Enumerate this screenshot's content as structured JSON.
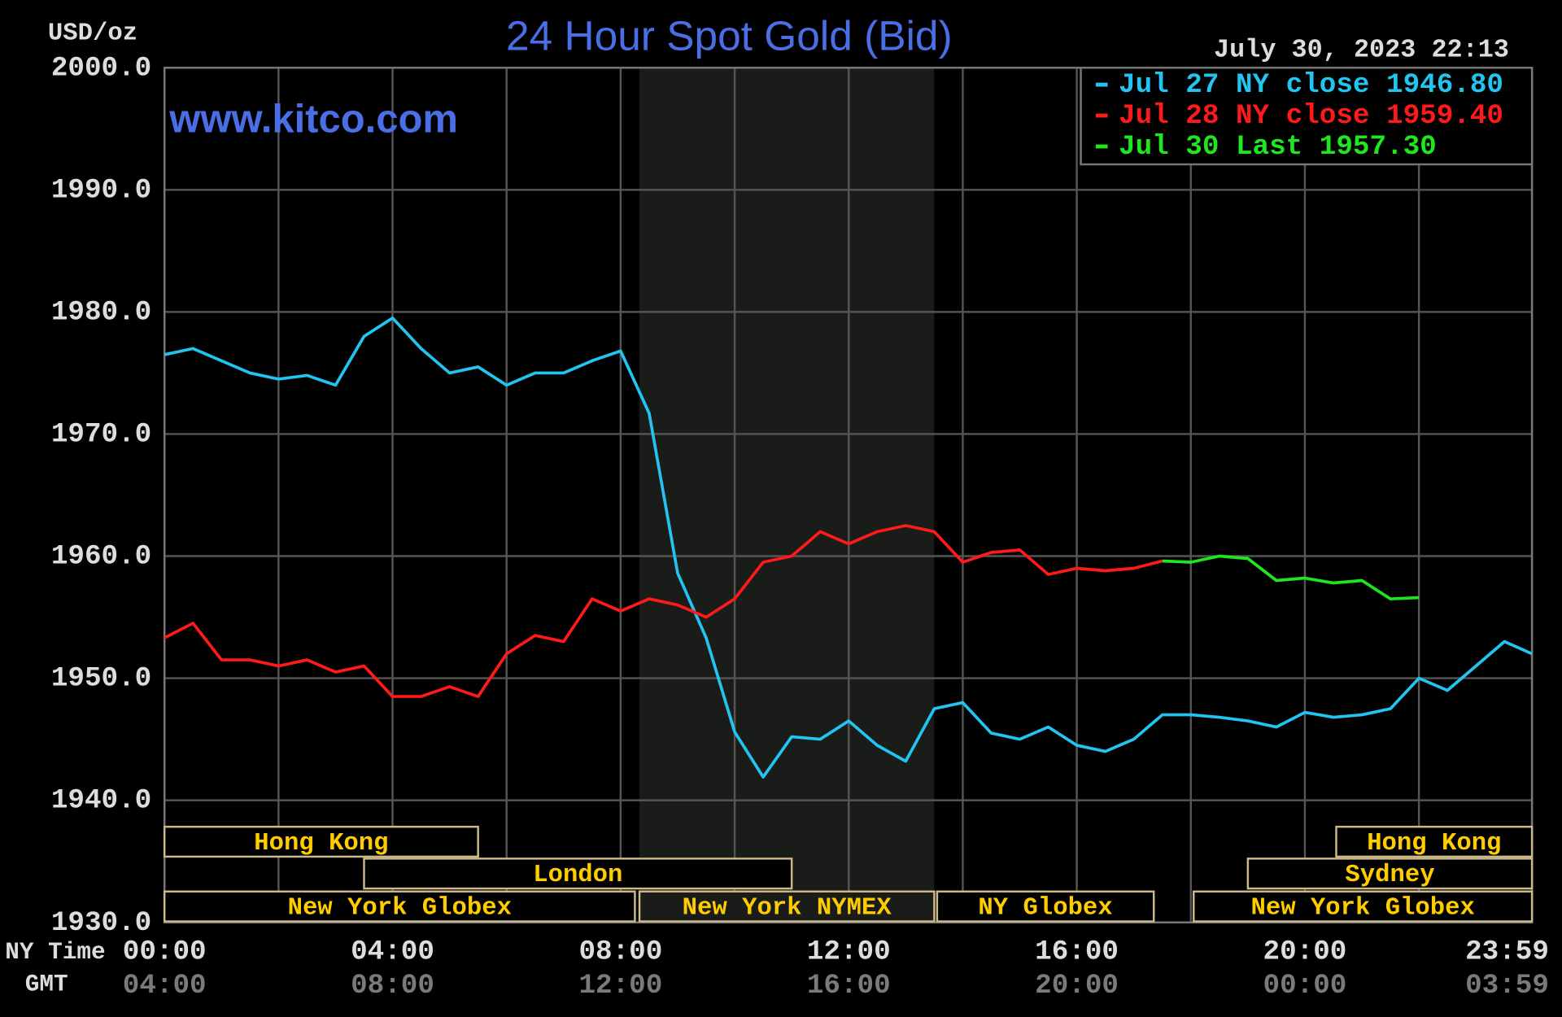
{
  "chart_data": {
    "type": "line",
    "title": "24 Hour Spot Gold (Bid)",
    "y_label": "USD/oz",
    "timestamp": "July 30, 2023 22:13",
    "watermark": "www.kitco.com",
    "x_label": "NY Time",
    "x2_label": "GMT",
    "xlim": [
      0,
      23.983
    ],
    "xticks": [
      {
        "value": 0,
        "label": "00:00"
      },
      {
        "value": 4,
        "label": "04:00"
      },
      {
        "value": 8,
        "label": "08:00"
      },
      {
        "value": 12,
        "label": "12:00"
      },
      {
        "value": 16,
        "label": "16:00"
      },
      {
        "value": 20,
        "label": "20:00"
      },
      {
        "value": 23.983,
        "label": "23:59"
      }
    ],
    "x2tick_labels": [
      "04:00",
      "08:00",
      "12:00",
      "16:00",
      "20:00",
      "00:00",
      "03:59"
    ],
    "xminor": [
      2,
      6,
      10,
      14,
      18,
      22
    ],
    "ylim": [
      1930,
      2000
    ],
    "yticks": [
      {
        "value": 1930,
        "label": "1930.0"
      },
      {
        "value": 1940,
        "label": "1940.0"
      },
      {
        "value": 1950,
        "label": "1950.0"
      },
      {
        "value": 1960,
        "label": "1960.0"
      },
      {
        "value": 1970,
        "label": "1970.0"
      },
      {
        "value": 1980,
        "label": "1980.0"
      },
      {
        "value": 1990,
        "label": "1990.0"
      },
      {
        "value": 2000,
        "label": "2000.0"
      }
    ],
    "grid": true,
    "legend": "upper right",
    "x": [
      0,
      0.5,
      1,
      1.5,
      2,
      2.5,
      3,
      3.5,
      4,
      4.5,
      5,
      5.5,
      6,
      6.5,
      7,
      7.5,
      8,
      8.5,
      9,
      9.5,
      10,
      10.5,
      11,
      11.5,
      12,
      12.5,
      13,
      13.5,
      14,
      14.5,
      15,
      15.5,
      16,
      16.5,
      17,
      17.5,
      18,
      18.5,
      19,
      19.5,
      20,
      20.5,
      21,
      21.5,
      22,
      22.5,
      23,
      23.5,
      23.983
    ],
    "series": [
      {
        "name": "Jul 27 NY close 1946.80",
        "color": "#22c4f0",
        "values": [
          1976.5,
          1977,
          1976,
          1975,
          1974.5,
          1974.8,
          1974,
          1978,
          1979.5,
          1977,
          1975,
          1975.5,
          1974,
          1975,
          1975,
          1976,
          1976.8,
          1971.7,
          1958.6,
          1953.3,
          1945.6,
          1941.9,
          1945.2,
          1945,
          1946.5,
          1944.5,
          1943.2,
          1947.5,
          1948,
          1945.5,
          1945,
          1946,
          1944.5,
          1944,
          1945,
          1947,
          1947,
          1946.8,
          1946.5,
          1946,
          1947.2,
          1946.8,
          1947,
          1947.5,
          1950,
          1949,
          1951,
          1953,
          1952
        ]
      },
      {
        "name": "Jul 28 NY close 1959.40",
        "color": "#ff1a1a",
        "values": [
          1953.3,
          1954.5,
          1951.5,
          1951.5,
          1951,
          1951.5,
          1950.5,
          1951,
          1948.5,
          1948.5,
          1949.3,
          1948.5,
          1952,
          1953.5,
          1953,
          1956.5,
          1955.5,
          1956.5,
          1956,
          1955,
          1956.5,
          1959.5,
          1960,
          1962,
          1961,
          1962,
          1962.5,
          1962,
          1959.5,
          1960.3,
          1960.5,
          1958.5,
          1959,
          1958.8,
          1959,
          1959.6,
          null,
          null,
          null,
          null,
          null,
          null,
          null,
          null,
          null,
          null,
          null,
          null,
          null
        ]
      },
      {
        "name": "Jul 30 Last 1957.30",
        "color": "#1fe61f",
        "values": [
          null,
          null,
          null,
          null,
          null,
          null,
          null,
          null,
          null,
          null,
          null,
          null,
          null,
          null,
          null,
          null,
          null,
          null,
          null,
          null,
          null,
          null,
          null,
          null,
          null,
          null,
          null,
          null,
          null,
          null,
          null,
          null,
          null,
          null,
          null,
          1959.6,
          1959.5,
          1960,
          1959.8,
          1958,
          1958.2,
          1957.8,
          1958,
          1956.5,
          1956.6,
          null,
          null,
          null,
          null
        ]
      }
    ],
    "sessions": [
      {
        "label": "Hong Kong",
        "start": 0,
        "end": 5.5,
        "row": 0
      },
      {
        "label": "Hong Kong",
        "start": 20.55,
        "end": 23.983,
        "row": 0
      },
      {
        "label": "London",
        "start": 3.5,
        "end": 11,
        "row": 1
      },
      {
        "label": "Sydney",
        "start": 19,
        "end": 23.983,
        "row": 1
      },
      {
        "label": "New York Globex",
        "start": 0,
        "end": 8.25,
        "row": 2
      },
      {
        "label": "New York NYMEX",
        "start": 8.33,
        "end": 13.5,
        "row": 2,
        "shaded": true
      },
      {
        "label": "NY Globex",
        "start": 13.55,
        "end": 17.35,
        "row": 2
      },
      {
        "label": "New York Globex",
        "start": 18.05,
        "end": 23.983,
        "row": 2
      }
    ]
  }
}
